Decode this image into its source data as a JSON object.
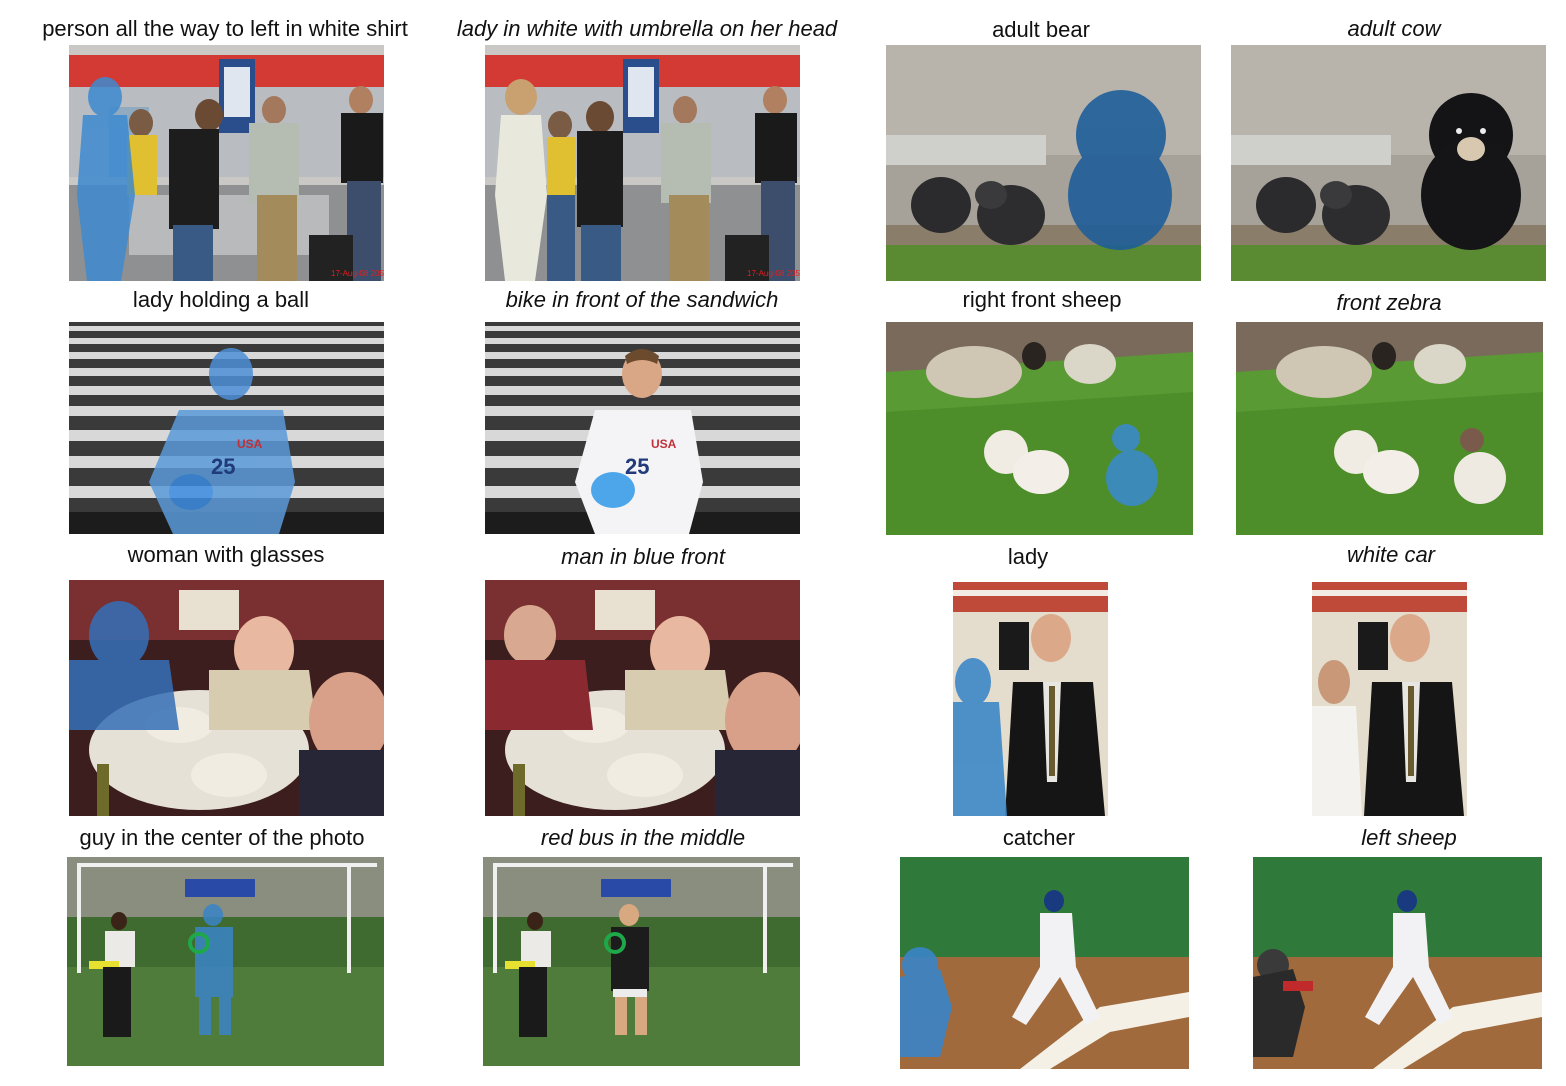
{
  "figure": {
    "rows": [
      {
        "left_pair": {
          "ref": "person all the way to left in white shirt",
          "hyp": "lady in white with umbrella on her head"
        },
        "right_pair": {
          "ref": "adult bear",
          "hyp": "adult cow"
        }
      },
      {
        "left_pair": {
          "ref": "lady holding a ball",
          "hyp": "bike in front of the sandwich"
        },
        "right_pair": {
          "ref": "right front sheep",
          "hyp": "front zebra"
        }
      },
      {
        "left_pair": {
          "ref": "woman with glasses",
          "hyp": "man in blue front"
        },
        "right_pair": {
          "ref": "lady",
          "hyp": "white car"
        }
      },
      {
        "left_pair": {
          "ref": "guy in the center of the photo",
          "hyp": "red bus in the middle"
        },
        "right_pair": {
          "ref": "catcher",
          "hyp": "left sheep"
        }
      }
    ],
    "stamp_text": "17-Aug-08 2052",
    "jersey_text": {
      "team": "USA",
      "number": "25"
    },
    "mask_color": "#2f7fc4"
  }
}
